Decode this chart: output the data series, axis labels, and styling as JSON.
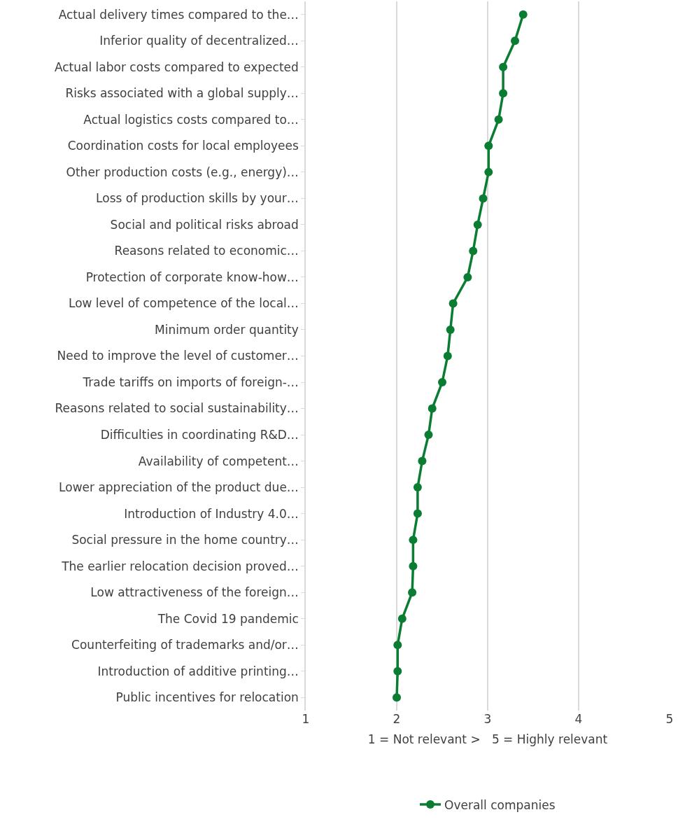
{
  "chart_data": {
    "type": "line",
    "orientation": "horizontal",
    "categories": [
      "Actual delivery times compared to the…",
      "Inferior quality of decentralized…",
      "Actual labor costs compared to expected",
      "Risks associated with a global supply…",
      "Actual logistics costs compared to…",
      "Coordination costs for local employees",
      "Other production costs (e.g., energy)…",
      "Loss of production skills by your…",
      "Social and political risks abroad",
      "Reasons related to economic…",
      "Protection of corporate know-how…",
      "Low level of competence of the local…",
      "Minimum order quantity",
      "Need to improve the level of customer…",
      "Trade tariffs on imports of foreign-…",
      "Reasons related to social sustainability…",
      "Difficulties in coordinating R&D…",
      "Availability of competent…",
      "Lower appreciation of the product due…",
      "Introduction of Industry 4.0…",
      "Social pressure in the home country…",
      "The earlier relocation decision proved…",
      "Low attractiveness of the foreign…",
      "The Covid 19 pandemic",
      "Counterfeiting of trademarks and/or…",
      "Introduction of additive printing…",
      "Public incentives for relocation"
    ],
    "series": [
      {
        "name": "Overall companies",
        "color": "#0a7d32",
        "values": [
          3.39,
          3.3,
          3.17,
          3.17,
          3.12,
          3.01,
          3.01,
          2.95,
          2.89,
          2.84,
          2.78,
          2.62,
          2.59,
          2.56,
          2.5,
          2.39,
          2.35,
          2.28,
          2.23,
          2.23,
          2.18,
          2.18,
          2.17,
          2.06,
          2.01,
          2.01,
          2.0
        ]
      }
    ],
    "xlim": [
      1,
      5
    ],
    "xticks": [
      1,
      2,
      3,
      4,
      5
    ],
    "xlabel": "1 = Not relevant >   5 = Highly relevant",
    "grid": "x",
    "legend": "bottom",
    "marker": "circle",
    "line_style": "solid"
  }
}
